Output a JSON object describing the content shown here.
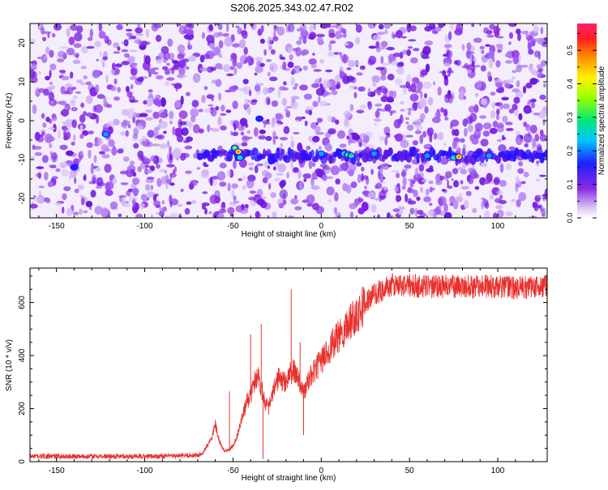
{
  "title": "S206.2025.343.02.47.R02",
  "chart_data": [
    {
      "type": "heatmap",
      "title": "S206.2025.343.02.47.R02",
      "xlabel": "Height of straight line (km)",
      "ylabel": "Frequency (Hz)",
      "xlim": [
        -165,
        128
      ],
      "ylim": [
        -25,
        25
      ],
      "xticks": [
        -150,
        -100,
        -50,
        0,
        50,
        100
      ],
      "yticks": [
        -20,
        -10,
        0,
        10,
        20
      ],
      "colorbar": {
        "label": "Normalized spectral amplitude",
        "range": [
          0,
          0.58
        ],
        "ticks": [
          0.0,
          0.1,
          0.2,
          0.3,
          0.4,
          0.5
        ]
      },
      "signal_track": {
        "frequency_hz": -9,
        "x_start_km": -70,
        "x_end_km": 128,
        "hot_spots": [
          {
            "x": -49,
            "y": -7,
            "amp": 0.35
          },
          {
            "x": -47,
            "y": -8,
            "amp": 0.42
          },
          {
            "x": -46,
            "y": -9.5,
            "amp": 0.25
          },
          {
            "x": -35,
            "y": 0.5,
            "amp": 0.15
          },
          {
            "x": -122,
            "y": -3.5,
            "amp": 0.18
          },
          {
            "x": -140,
            "y": -12,
            "amp": 0.15
          },
          {
            "x": 0,
            "y": -8.5,
            "amp": 0.22
          },
          {
            "x": 13,
            "y": -8.5,
            "amp": 0.28
          },
          {
            "x": 15,
            "y": -8.8,
            "amp": 0.32
          },
          {
            "x": 17,
            "y": -9,
            "amp": 0.25
          },
          {
            "x": 30,
            "y": -8.5,
            "amp": 0.18
          },
          {
            "x": 60,
            "y": -9,
            "amp": 0.2
          },
          {
            "x": 75,
            "y": -9.5,
            "amp": 0.28
          },
          {
            "x": 78,
            "y": -9.3,
            "amp": 0.45
          },
          {
            "x": 95,
            "y": -9,
            "amp": 0.17
          },
          {
            "x": 123,
            "y": -9,
            "amp": 0.15
          }
        ]
      }
    },
    {
      "type": "line",
      "xlabel": "Height of straight line (km)",
      "ylabel": "SNR (10 * v/v)",
      "xlim": [
        -165,
        128
      ],
      "ylim": [
        0,
        730
      ],
      "xticks": [
        -150,
        -100,
        -50,
        0,
        50,
        100
      ],
      "yticks": [
        0,
        200,
        400,
        600
      ],
      "series": [
        {
          "name": "SNR",
          "color": "#e8322e",
          "x": [
            -165,
            -140,
            -120,
            -100,
            -80,
            -68,
            -62,
            -60,
            -58,
            -55,
            -52,
            -50,
            -48,
            -45,
            -42,
            -40,
            -38,
            -36,
            -34,
            -32,
            -30,
            -28,
            -26,
            -24,
            -22,
            -20,
            -18,
            -16,
            -14,
            -12,
            -10,
            -8,
            -6,
            -4,
            -2,
            0,
            5,
            10,
            15,
            20,
            25,
            30,
            35,
            40,
            45,
            50,
            60,
            70,
            80,
            90,
            100,
            110,
            120,
            128
          ],
          "y": [
            20,
            20,
            20,
            20,
            22,
            25,
            90,
            140,
            80,
            40,
            45,
            60,
            90,
            160,
            230,
            250,
            300,
            330,
            280,
            230,
            200,
            240,
            290,
            320,
            300,
            300,
            330,
            340,
            330,
            300,
            260,
            290,
            320,
            340,
            360,
            380,
            430,
            470,
            520,
            560,
            600,
            630,
            650,
            665,
            665,
            665,
            660,
            660,
            660,
            660,
            660,
            655,
            660,
            660
          ],
          "spikes": [
            {
              "x": -52,
              "y": 265
            },
            {
              "x": -40,
              "y": 480
            },
            {
              "x": -34,
              "y": 520
            },
            {
              "x": -17,
              "y": 650
            },
            {
              "x": -12,
              "y": 450
            },
            {
              "x": -10,
              "y": 100
            },
            {
              "x": -33,
              "y": 10
            }
          ],
          "noise_amplitude": 15
        }
      ]
    }
  ]
}
